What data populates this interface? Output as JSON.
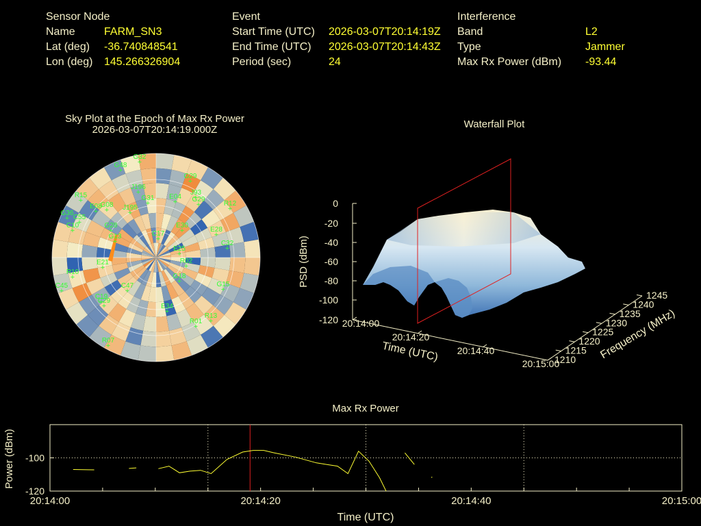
{
  "sensor": {
    "title": "Sensor Node",
    "rows": [
      {
        "label": "Name",
        "value": "FARM_SN3"
      },
      {
        "label": "Lat (deg)",
        "value": "-36.740848541"
      },
      {
        "label": "Lon (deg)",
        "value": "145.266326904"
      }
    ]
  },
  "event": {
    "title": "Event",
    "rows": [
      {
        "label": "Start Time (UTC)",
        "value": "2026-03-07T20:14:19Z"
      },
      {
        "label": "End Time (UTC)",
        "value": "2026-03-07T20:14:43Z"
      },
      {
        "label": "Period (sec)",
        "value": "24"
      }
    ]
  },
  "interference": {
    "title": "Interference",
    "rows": [
      {
        "label": "Band",
        "value": "L2"
      },
      {
        "label": "Type",
        "value": "Jammer"
      },
      {
        "label": "Max Rx Power (dBm)",
        "value": "-93.44"
      }
    ]
  },
  "chart_data": [
    {
      "type": "heatmap",
      "title": "Sky Plot at the Epoch of Max Rx Power",
      "subtitle": "2026-03-07T20:14:19.000Z",
      "projection": "polar",
      "satellites": [
        "G32",
        "G48",
        "G29",
        "J196",
        "J93",
        "R15",
        "G31",
        "G29",
        "G36",
        "E08",
        "G08",
        "J195",
        "R12",
        "C55",
        "E04",
        "C10",
        "G28",
        "E30",
        "E28",
        "G13",
        "C17",
        "C32",
        "E25",
        "R02",
        "R10",
        "E21",
        "G18",
        "G15",
        "C45",
        "C47",
        "C19",
        "C29",
        "E34",
        "R01",
        "R13",
        "R07"
      ],
      "color_scale": {
        "low": "#2a5fb0",
        "mid": "#f5ecc4",
        "high": "#f08a3a"
      }
    },
    {
      "type": "area",
      "title": "Waterfall Plot",
      "xlabel": "Time (UTC)",
      "ylabel": "Frequency (MHz)",
      "zlabel": "PSD (dBm)",
      "x_ticks": [
        "20:14:00",
        "20:14:20",
        "20:14:40",
        "20:15:00"
      ],
      "y_ticks": [
        "1210",
        "1215",
        "1220",
        "1225",
        "1230",
        "1235",
        "1240",
        "1245"
      ],
      "z_ticks": [
        "0",
        "-20",
        "-40",
        "-60",
        "-80",
        "-100",
        "-120"
      ],
      "zlim": [
        -120,
        0
      ],
      "marker_time": "20:14:19"
    },
    {
      "type": "line",
      "title": "Max Rx Power",
      "xlabel": "Time (UTC)",
      "ylabel": "Power (dBm)",
      "x_ticks": [
        "20:14:00",
        "20:14:20",
        "20:14:40",
        "20:15:00"
      ],
      "y_ticks": [
        "-100",
        "-120"
      ],
      "xlim": [
        0,
        60
      ],
      "ylim": [
        -120,
        -80
      ],
      "marker_x": 19,
      "series_color": "#ffff33",
      "segments": [
        [
          [
            2.2,
            -107
          ],
          [
            4.2,
            -107.2
          ]
        ],
        [
          [
            7.5,
            -106.4
          ],
          [
            8.2,
            -106
          ]
        ],
        [
          [
            10.3,
            -106.5
          ],
          [
            11.3,
            -105
          ],
          [
            12.3,
            -109
          ],
          [
            13.3,
            -108
          ],
          [
            14.3,
            -107.5
          ],
          [
            15.3,
            -109.5
          ],
          [
            16.8,
            -101
          ],
          [
            18.3,
            -96.5
          ],
          [
            19.3,
            -95.5
          ],
          [
            20.3,
            -95.5
          ],
          [
            21.3,
            -97
          ],
          [
            23.3,
            -99.5
          ],
          [
            25.3,
            -103
          ],
          [
            26.3,
            -104
          ],
          [
            27.3,
            -105
          ],
          [
            28.3,
            -109.5
          ],
          [
            29.3,
            -96
          ],
          [
            30.3,
            -102
          ],
          [
            31.3,
            -112
          ],
          [
            32.3,
            -125
          ]
        ],
        [
          [
            33.7,
            -97
          ],
          [
            34.6,
            -104
          ]
        ],
        [
          [
            36.2,
            -111.8
          ],
          [
            36.3,
            -111.6
          ]
        ]
      ]
    }
  ]
}
